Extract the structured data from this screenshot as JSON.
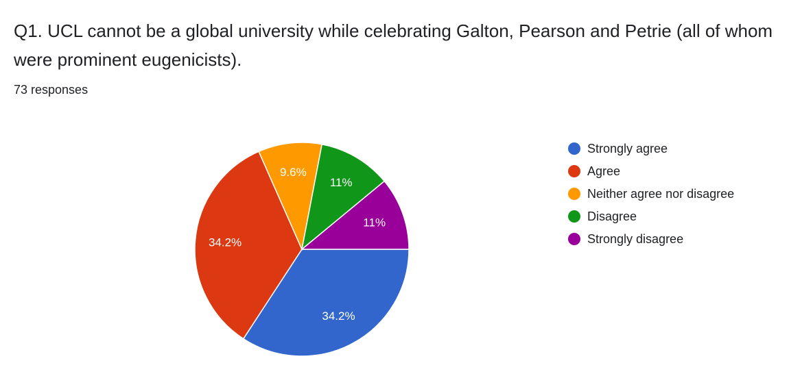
{
  "chart_data": {
    "type": "pie",
    "title": "Q1. UCL cannot be a global university while celebrating Galton, Pearson and Petrie (all of whom were prominent eugenicists).",
    "subtitle": "73 responses",
    "categories": [
      "Strongly agree",
      "Agree",
      "Neither agree nor disagree",
      "Disagree",
      "Strongly disagree"
    ],
    "values": [
      34.2,
      34.2,
      9.6,
      11,
      11
    ],
    "value_labels": [
      "34.2%",
      "34.2%",
      "9.6%",
      "11%",
      "11%"
    ],
    "colors": [
      "#3366cc",
      "#dc3912",
      "#ff9900",
      "#109618",
      "#990099"
    ],
    "legend": "right"
  }
}
